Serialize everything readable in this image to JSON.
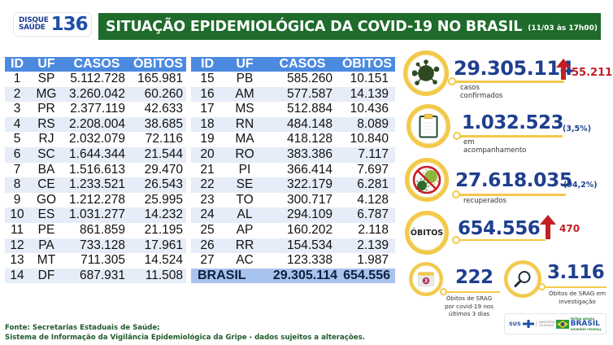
{
  "header": {
    "logo": {
      "line1": "DISQUE",
      "line2": "SAÚDE",
      "number": "136"
    },
    "title": "SITUAÇÃO EPIDEMIOLÓGICA DA COVID-19 NO BRASIL",
    "date": "(11/03 às 17h00)"
  },
  "table": {
    "columns": [
      "ID",
      "UF",
      "CASOS",
      "ÓBITOS"
    ],
    "left_rows": [
      {
        "id": "1",
        "uf": "SP",
        "casos": "5.112.728",
        "obitos": "165.981"
      },
      {
        "id": "2",
        "uf": "MG",
        "casos": "3.260.042",
        "obitos": "60.260"
      },
      {
        "id": "3",
        "uf": "PR",
        "casos": "2.377.119",
        "obitos": "42.633"
      },
      {
        "id": "4",
        "uf": "RS",
        "casos": "2.208.004",
        "obitos": "38.685"
      },
      {
        "id": "5",
        "uf": "RJ",
        "casos": "2.032.079",
        "obitos": "72.116"
      },
      {
        "id": "6",
        "uf": "SC",
        "casos": "1.644.344",
        "obitos": "21.544"
      },
      {
        "id": "7",
        "uf": "BA",
        "casos": "1.516.613",
        "obitos": "29.470"
      },
      {
        "id": "8",
        "uf": "CE",
        "casos": "1.233.521",
        "obitos": "26.543"
      },
      {
        "id": "9",
        "uf": "GO",
        "casos": "1.212.278",
        "obitos": "25.995"
      },
      {
        "id": "10",
        "uf": "ES",
        "casos": "1.031.277",
        "obitos": "14.232"
      },
      {
        "id": "11",
        "uf": "PE",
        "casos": "861.859",
        "obitos": "21.195"
      },
      {
        "id": "12",
        "uf": "PA",
        "casos": "733.128",
        "obitos": "17.961"
      },
      {
        "id": "13",
        "uf": "MT",
        "casos": "711.305",
        "obitos": "14.524"
      },
      {
        "id": "14",
        "uf": "DF",
        "casos": "687.931",
        "obitos": "11.508"
      }
    ],
    "right_rows": [
      {
        "id": "15",
        "uf": "PB",
        "casos": "585.260",
        "obitos": "10.151"
      },
      {
        "id": "16",
        "uf": "AM",
        "casos": "577.587",
        "obitos": "14.139"
      },
      {
        "id": "17",
        "uf": "MS",
        "casos": "512.884",
        "obitos": "10.436"
      },
      {
        "id": "18",
        "uf": "RN",
        "casos": "484.148",
        "obitos": "8.089"
      },
      {
        "id": "19",
        "uf": "MA",
        "casos": "418.128",
        "obitos": "10.840"
      },
      {
        "id": "20",
        "uf": "RO",
        "casos": "383.386",
        "obitos": "7.117"
      },
      {
        "id": "21",
        "uf": "PI",
        "casos": "366.414",
        "obitos": "7.697"
      },
      {
        "id": "22",
        "uf": "SE",
        "casos": "322.179",
        "obitos": "6.281"
      },
      {
        "id": "23",
        "uf": "TO",
        "casos": "300.717",
        "obitos": "4.128"
      },
      {
        "id": "24",
        "uf": "AL",
        "casos": "294.109",
        "obitos": "6.787"
      },
      {
        "id": "25",
        "uf": "AP",
        "casos": "160.202",
        "obitos": "2.118"
      },
      {
        "id": "26",
        "uf": "RR",
        "casos": "154.534",
        "obitos": "2.139"
      },
      {
        "id": "27",
        "uf": "AC",
        "casos": "123.338",
        "obitos": "1.987"
      }
    ],
    "total": {
      "label": "BRASIL",
      "casos": "29.305.114",
      "obitos": "654.556"
    }
  },
  "stats": {
    "confirmed": {
      "value": "29.305.114",
      "label": "casos confirmados",
      "delta": "55.211",
      "icon": "virus-icon"
    },
    "monitoring": {
      "value": "1.032.523",
      "label": "em acompanhamento",
      "pct": "(3,5%)",
      "icon": "clipboard-icon"
    },
    "recovered": {
      "value": "27.618.035",
      "label": "recuperados",
      "pct": "(94,2%)",
      "icon": "no-virus-icon"
    },
    "deaths": {
      "badge": "ÓBITOS",
      "value": "654.556",
      "delta": "470"
    },
    "srag_recent": {
      "value": "222",
      "label": "Óbitos de SRAG por covid-19 nos últimos 3 dias",
      "calendar_day": "3",
      "icon": "calendar-icon"
    },
    "srag_investigation": {
      "value": "3.116",
      "label": "Óbitos de SRAG em investigação",
      "icon": "magnifier-icon"
    }
  },
  "footer": {
    "line1": "Fonte: Secretarias Estaduais de Saúde;",
    "line2": "Sistema de Informação da Vigilância Epidemiológica da Gripe - dados sujeitos a alterações."
  },
  "govbar": {
    "sus": "SUS",
    "ministry": "MINISTÉRIO DA SAÚDE",
    "brand_top": "PÁTRIA AMADA",
    "brand": "BRASIL",
    "brand_sub": "GOVERNO FEDERAL"
  },
  "colors": {
    "title_green": "#1e6b2b",
    "table_header_blue": "#4c8ae0",
    "total_row_blue": "#a9c3ef",
    "number_blue": "#1f3f8f",
    "ring_yellow": "#f3c94a",
    "delta_red": "#c41e25"
  }
}
